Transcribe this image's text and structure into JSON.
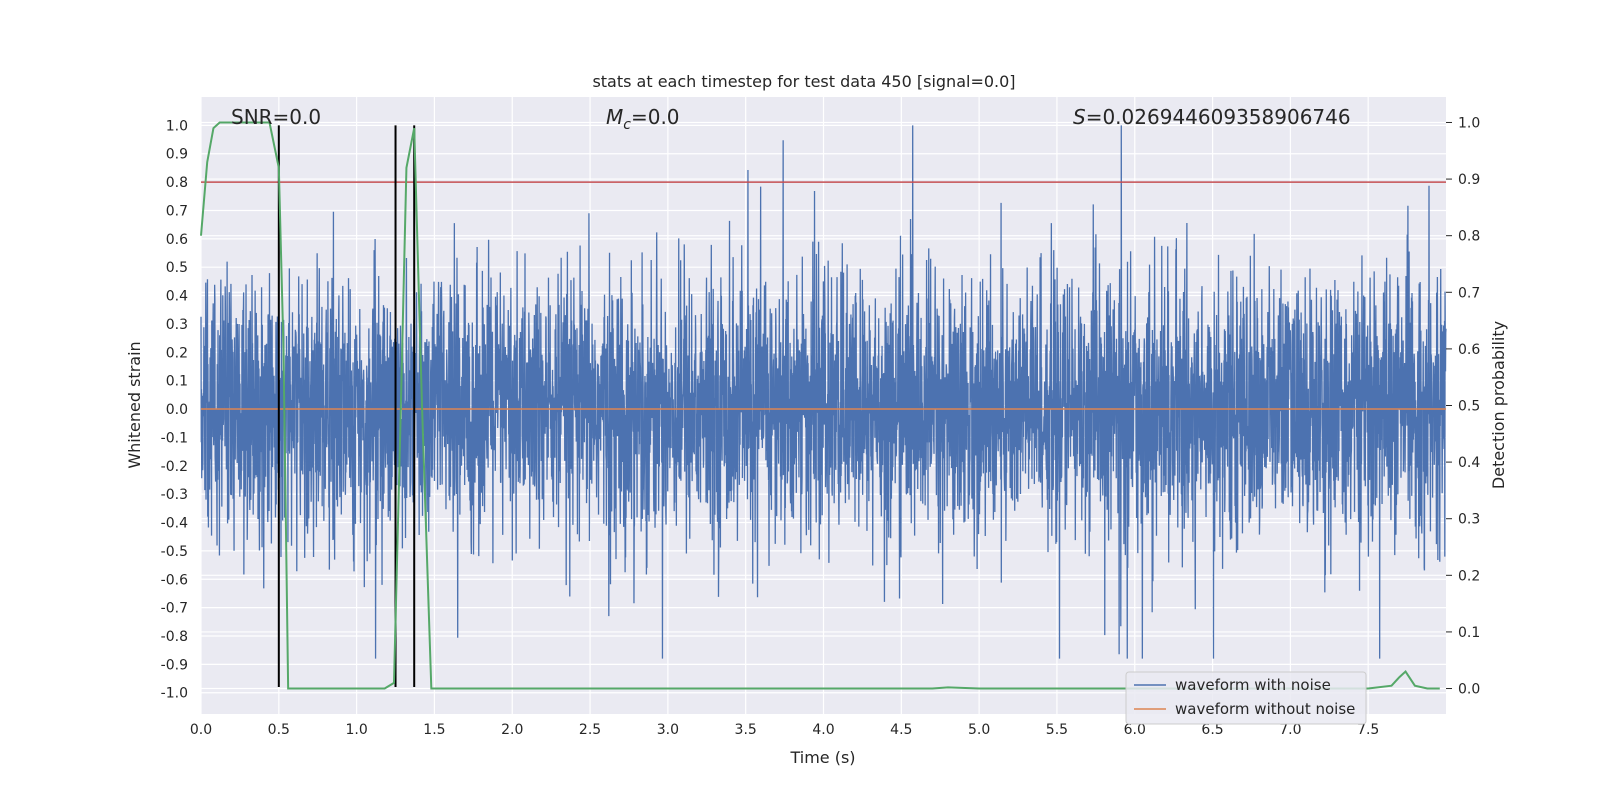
{
  "chart_data": {
    "type": "line",
    "title": "stats at each timestep for test data 450 [signal=0.0]",
    "xlabel": "Time (s)",
    "ylabel": "Whitened strain",
    "y2label": "Detection probability",
    "xlim": [
      0.0,
      8.0
    ],
    "ylim": [
      -1.075,
      1.1
    ],
    "y2lim": [
      -0.045,
      1.045
    ],
    "x_ticks": [
      "0.0",
      "0.5",
      "1.0",
      "1.5",
      "2.0",
      "2.5",
      "3.0",
      "3.5",
      "4.0",
      "4.5",
      "5.0",
      "5.5",
      "6.0",
      "6.5",
      "7.0",
      "7.5"
    ],
    "y_ticks": [
      "1.0",
      "0.9",
      "0.8",
      "0.7",
      "0.6",
      "0.5",
      "0.4",
      "0.3",
      "0.2",
      "0.1",
      "0.0",
      "-0.1",
      "-0.2",
      "-0.3",
      "-0.4",
      "-0.5",
      "-0.6",
      "-0.7",
      "-0.8",
      "-0.9",
      "-1.0"
    ],
    "y2_ticks": [
      "1.0",
      "0.9",
      "0.8",
      "0.7",
      "0.6",
      "0.5",
      "0.4",
      "0.3",
      "0.2",
      "0.1",
      "0.0"
    ],
    "grid": true,
    "legend_position": "lower-right",
    "annotations": {
      "snr": "SNR=0.0",
      "mc_symbol": "M",
      "mc_sub": "c",
      "mc_value": "=0.0",
      "s_symbol": "S",
      "s_value": "=0.026944609358906746"
    },
    "series": [
      {
        "name": "waveform with noise",
        "axis": "left",
        "color": "#4c72b0",
        "x_range": [
          0.0,
          8.0
        ],
        "amplitude_envelope": [
          -0.88,
          1.0
        ]
      },
      {
        "name": "waveform without noise",
        "axis": "left",
        "color": "#dd8452",
        "x": [
          0.0,
          8.0
        ],
        "y": [
          0.0,
          0.0
        ]
      },
      {
        "name": "",
        "axis": "right",
        "color": "#55a868",
        "x": [
          0.0,
          0.04,
          0.08,
          0.12,
          0.18,
          0.3,
          0.44,
          0.5,
          0.53,
          0.56,
          0.9,
          1.18,
          1.24,
          1.28,
          1.32,
          1.37,
          1.42,
          1.48,
          2.0,
          3.0,
          4.0,
          4.7,
          4.8,
          5.0,
          5.5,
          6.0,
          6.5,
          7.0,
          7.5,
          7.65,
          7.7,
          7.74,
          7.8,
          7.88,
          7.96
        ],
        "y": [
          0.8,
          0.93,
          0.99,
          1.0,
          1.0,
          1.0,
          1.0,
          0.92,
          0.6,
          0.0,
          0.0,
          0.0,
          0.01,
          0.45,
          0.92,
          0.99,
          0.5,
          0.0,
          0.0,
          0.0,
          0.0,
          0.0,
          0.002,
          0.0,
          0.0,
          0.0,
          0.0,
          0.0,
          0.0,
          0.005,
          0.02,
          0.03,
          0.005,
          0.0,
          0.0
        ]
      }
    ],
    "hlines": [
      {
        "y": 0.8,
        "color": "#c44e52"
      }
    ],
    "vlines": [
      {
        "x": 0.5,
        "color": "#000000"
      },
      {
        "x": 1.25,
        "color": "#000000"
      },
      {
        "x": 1.37,
        "color": "#000000"
      }
    ],
    "vline_y_range": [
      -0.98,
      1.0
    ]
  }
}
